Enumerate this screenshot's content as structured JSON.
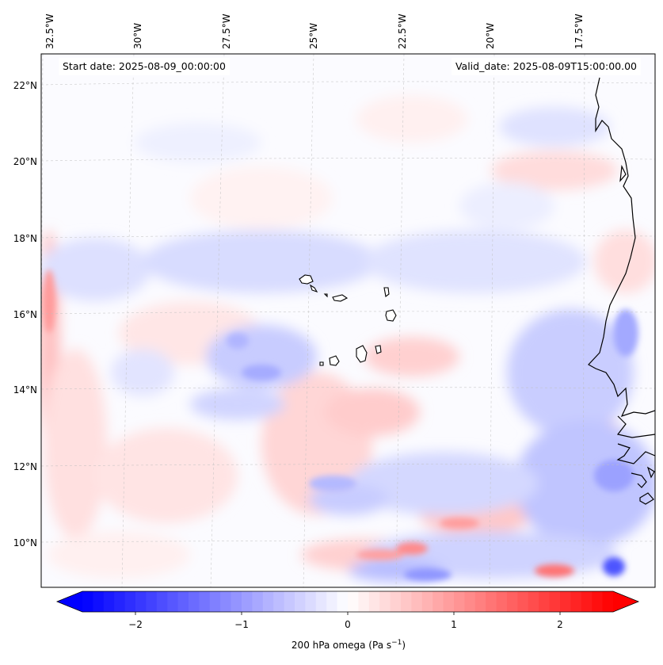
{
  "header": {
    "start_date": "Start date: 2025-08-09_00:00:00",
    "valid_date": "Valid_date: 2025-08-09T15:00:00.00"
  },
  "map": {
    "lon_labels": [
      "32.5°W",
      "30°W",
      "27.5°W",
      "25°W",
      "22.5°W",
      "20°W",
      "17.5°W"
    ],
    "lat_labels": [
      "22°N",
      "20°N",
      "18°N",
      "16°N",
      "14°N",
      "12°N",
      "10°N"
    ],
    "field": "200 hPa omega",
    "colormap": "bwr"
  },
  "colorbar": {
    "label_prefix": "200 hPa omega (Pa s",
    "label_exp": "−1",
    "label_suffix": ")",
    "ticks": [
      "−2",
      "−1",
      "0",
      "1",
      "2"
    ],
    "range": [
      -2.6,
      2.6
    ],
    "extend": "both",
    "colors": {
      "min": "#0000ff",
      "mid": "#ffffff",
      "max": "#ff0000"
    }
  }
}
